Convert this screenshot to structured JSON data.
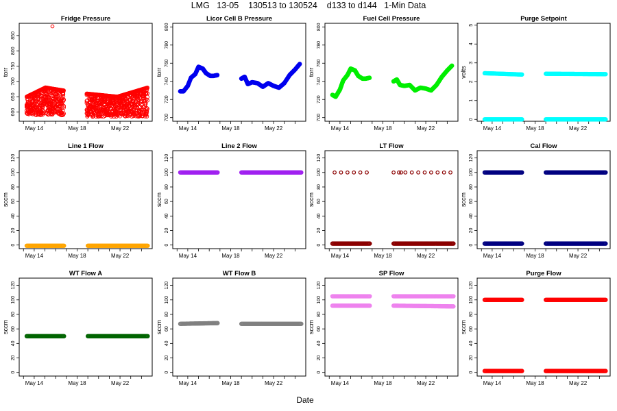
{
  "title": "LMG   13-05    130513 to 130524    d133 to d144   1-Min Data",
  "xlabel": "Date",
  "chart_data": [
    {
      "type": "scatter",
      "title": "Fridge Pressure",
      "ylabel": "torr",
      "ylim": [
        570,
        890
      ],
      "yticks": [
        600,
        650,
        700,
        750,
        800,
        850
      ],
      "xticks": [
        "May 14",
        "May 18",
        "May 22"
      ],
      "color": "#ff0000",
      "series": [
        {
          "name": "pressure",
          "kind": "band",
          "segments": [
            {
              "x": [
                13.3,
                16.8
              ],
              "lo": 590,
              "hi": 680,
              "trend": [
                650,
                680,
                670
              ]
            },
            {
              "x": [
                18.9,
                24.6
              ],
              "lo": 585,
              "hi": 680,
              "trend": [
                660,
                650,
                680
              ]
            }
          ]
        }
      ],
      "outliers": [
        {
          "x": 15.7,
          "y": 880
        }
      ]
    },
    {
      "type": "scatter",
      "title": "Licor Cell B Pressure",
      "ylabel": "torr",
      "ylim": [
        696,
        804
      ],
      "yticks": [
        700,
        720,
        740,
        760,
        780,
        800
      ],
      "xticks": [
        "May 14",
        "May 18",
        "May 22"
      ],
      "color": "#0000ee",
      "series": [
        {
          "name": "pressure",
          "kind": "line",
          "segments": [
            {
              "x": [
                13.3,
                13.6,
                14.0,
                14.3,
                14.7,
                15.0,
                15.4,
                15.7,
                16.1,
                16.4,
                16.8
              ],
              "y": [
                729,
                729,
                735,
                744,
                748,
                756,
                754,
                749,
                746,
                746,
                747
              ]
            },
            {
              "x": [
                19.0,
                19.3,
                19.6,
                20.0,
                20.5,
                21.0,
                21.5,
                22.0,
                22.5,
                23.0,
                23.5,
                24.0,
                24.5
              ],
              "y": [
                743,
                745,
                737,
                739,
                738,
                734,
                738,
                735,
                733,
                738,
                747,
                753,
                760
              ]
            }
          ]
        }
      ]
    },
    {
      "type": "scatter",
      "title": "Fuel Cell Pressure",
      "ylabel": "torr",
      "ylim": [
        696,
        804
      ],
      "yticks": [
        700,
        720,
        740,
        760,
        780,
        800
      ],
      "xticks": [
        "May 14",
        "May 18",
        "May 22"
      ],
      "color": "#00ee00",
      "series": [
        {
          "name": "pressure",
          "kind": "line",
          "segments": [
            {
              "x": [
                13.3,
                13.6,
                14.0,
                14.3,
                14.7,
                15.0,
                15.4,
                15.7,
                16.1,
                16.4,
                16.8
              ],
              "y": [
                725,
                723,
                731,
                741,
                747,
                754,
                752,
                746,
                743,
                743,
                744
              ]
            },
            {
              "x": [
                19.0,
                19.3,
                19.6,
                20.0,
                20.5,
                21.0,
                21.5,
                22.0,
                22.5,
                23.0,
                23.5,
                24.0,
                24.5
              ],
              "y": [
                740,
                742,
                736,
                735,
                736,
                730,
                733,
                732,
                730,
                736,
                745,
                752,
                758
              ]
            }
          ]
        }
      ]
    },
    {
      "type": "scatter",
      "title": "Purge Setpoint",
      "ylabel": "volts",
      "ylim": [
        -0.1,
        5.1
      ],
      "yticks": [
        0,
        1,
        2,
        3,
        4,
        5
      ],
      "xticks": [
        "May 14",
        "May 18",
        "May 22"
      ],
      "color": "#00ffff",
      "series": [
        {
          "name": "high",
          "kind": "flat",
          "segments": [
            {
              "x": [
                13.3,
                16.8
              ],
              "y": [
                2.45,
                2.38
              ]
            },
            {
              "x": [
                19.0,
                24.6
              ],
              "y": [
                2.42,
                2.4
              ]
            }
          ]
        },
        {
          "name": "low",
          "kind": "flat",
          "segments": [
            {
              "x": [
                13.3,
                16.8
              ],
              "y": [
                0,
                0
              ]
            },
            {
              "x": [
                19.0,
                24.6
              ],
              "y": [
                0,
                0
              ]
            }
          ]
        }
      ]
    },
    {
      "type": "scatter",
      "title": "Line 1 Flow",
      "ylabel": "sccm",
      "ylim": [
        -5,
        130
      ],
      "yticks": [
        0,
        20,
        40,
        60,
        80,
        100,
        120
      ],
      "xticks": [
        "May 14",
        "May 18",
        "May 22"
      ],
      "color": "#ffa500",
      "series": [
        {
          "name": "flow",
          "kind": "flat",
          "segments": [
            {
              "x": [
                13.3,
                16.8
              ],
              "y": [
                -1,
                -1
              ]
            },
            {
              "x": [
                19.0,
                24.6
              ],
              "y": [
                -1,
                -1
              ]
            }
          ]
        }
      ]
    },
    {
      "type": "scatter",
      "title": "Line 2 Flow",
      "ylabel": "sccm",
      "ylim": [
        -5,
        130
      ],
      "yticks": [
        0,
        20,
        40,
        60,
        80,
        100,
        120
      ],
      "xticks": [
        "May 14",
        "May 18",
        "May 22"
      ],
      "color": "#a020f0",
      "series": [
        {
          "name": "flow",
          "kind": "flat",
          "segments": [
            {
              "x": [
                13.3,
                16.8
              ],
              "y": [
                100,
                100
              ]
            },
            {
              "x": [
                19.0,
                24.6
              ],
              "y": [
                100,
                100
              ]
            }
          ]
        }
      ]
    },
    {
      "type": "scatter",
      "title": "LT Flow",
      "ylabel": "sccm",
      "ylim": [
        -5,
        130
      ],
      "yticks": [
        0,
        20,
        40,
        60,
        80,
        100,
        120
      ],
      "xticks": [
        "May 14",
        "May 18",
        "May 22"
      ],
      "color": "#8b0000",
      "series": [
        {
          "name": "low",
          "kind": "flat",
          "segments": [
            {
              "x": [
                13.3,
                16.8
              ],
              "y": [
                2,
                2
              ]
            },
            {
              "x": [
                19.0,
                24.6
              ],
              "y": [
                2,
                2
              ]
            }
          ]
        },
        {
          "name": "high",
          "kind": "sparse",
          "segments": [
            {
              "x": [
                13.5,
                14.1,
                14.7,
                15.3,
                15.9,
                16.5,
                19.0,
                19.5,
                19.7,
                20.1,
                20.7,
                21.3,
                21.9,
                22.5,
                23.1,
                23.7,
                24.3
              ],
              "y": [
                100,
                100,
                100,
                100,
                100,
                100,
                100,
                100,
                100,
                100,
                100,
                100,
                100,
                100,
                100,
                100,
                100
              ]
            }
          ]
        }
      ]
    },
    {
      "type": "scatter",
      "title": "Cal Flow",
      "ylabel": "sccm",
      "ylim": [
        -5,
        130
      ],
      "yticks": [
        0,
        20,
        40,
        60,
        80,
        100,
        120
      ],
      "xticks": [
        "May 14",
        "May 18",
        "May 22"
      ],
      "color": "#000080",
      "series": [
        {
          "name": "high",
          "kind": "flat",
          "segments": [
            {
              "x": [
                13.3,
                16.8
              ],
              "y": [
                100,
                100
              ]
            },
            {
              "x": [
                19.0,
                24.6
              ],
              "y": [
                100,
                100
              ]
            }
          ]
        },
        {
          "name": "low",
          "kind": "flat",
          "segments": [
            {
              "x": [
                13.3,
                16.8
              ],
              "y": [
                2,
                2
              ]
            },
            {
              "x": [
                19.0,
                24.6
              ],
              "y": [
                2,
                2
              ]
            }
          ]
        }
      ]
    },
    {
      "type": "scatter",
      "title": "WT Flow A",
      "ylabel": "sccm",
      "ylim": [
        -5,
        130
      ],
      "yticks": [
        0,
        20,
        40,
        60,
        80,
        100,
        120
      ],
      "xticks": [
        "May 14",
        "May 18",
        "May 22"
      ],
      "color": "#006400",
      "series": [
        {
          "name": "flow",
          "kind": "flat",
          "segments": [
            {
              "x": [
                13.3,
                16.8
              ],
              "y": [
                50,
                50
              ]
            },
            {
              "x": [
                19.0,
                24.6
              ],
              "y": [
                50,
                50
              ]
            }
          ]
        }
      ]
    },
    {
      "type": "scatter",
      "title": "WT Flow B",
      "ylabel": "sccm",
      "ylim": [
        -5,
        130
      ],
      "yticks": [
        0,
        20,
        40,
        60,
        80,
        100,
        120
      ],
      "xticks": [
        "May 14",
        "May 18",
        "May 22"
      ],
      "color": "#808080",
      "series": [
        {
          "name": "flow",
          "kind": "flat",
          "segments": [
            {
              "x": [
                13.3,
                16.8
              ],
              "y": [
                67,
                68
              ]
            },
            {
              "x": [
                19.0,
                24.6
              ],
              "y": [
                67,
                67
              ]
            }
          ]
        }
      ]
    },
    {
      "type": "scatter",
      "title": "SP Flow",
      "ylabel": "sccm",
      "ylim": [
        -5,
        130
      ],
      "yticks": [
        0,
        20,
        40,
        60,
        80,
        100,
        120
      ],
      "xticks": [
        "May 14",
        "May 18",
        "May 22"
      ],
      "color": "#ee82ee",
      "series": [
        {
          "name": "high",
          "kind": "flat",
          "segments": [
            {
              "x": [
                13.3,
                16.8
              ],
              "y": [
                105,
                105
              ]
            },
            {
              "x": [
                19.0,
                24.6
              ],
              "y": [
                105,
                105
              ]
            }
          ]
        },
        {
          "name": "low",
          "kind": "flat",
          "segments": [
            {
              "x": [
                13.3,
                16.8
              ],
              "y": [
                92,
                92
              ]
            },
            {
              "x": [
                19.0,
                24.6
              ],
              "y": [
                92,
                91
              ]
            }
          ]
        }
      ]
    },
    {
      "type": "scatter",
      "title": "Purge Flow",
      "ylabel": "sccm",
      "ylim": [
        -5,
        130
      ],
      "yticks": [
        0,
        20,
        40,
        60,
        80,
        100,
        120
      ],
      "xticks": [
        "May 14",
        "May 18",
        "May 22"
      ],
      "color": "#ff0000",
      "series": [
        {
          "name": "high",
          "kind": "flat",
          "segments": [
            {
              "x": [
                13.3,
                16.8
              ],
              "y": [
                100,
                100
              ]
            },
            {
              "x": [
                19.0,
                24.6
              ],
              "y": [
                100,
                100
              ]
            }
          ]
        },
        {
          "name": "low",
          "kind": "flat",
          "segments": [
            {
              "x": [
                13.3,
                16.8
              ],
              "y": [
                2,
                2
              ]
            },
            {
              "x": [
                19.0,
                24.6
              ],
              "y": [
                2,
                2
              ]
            }
          ]
        }
      ]
    }
  ]
}
